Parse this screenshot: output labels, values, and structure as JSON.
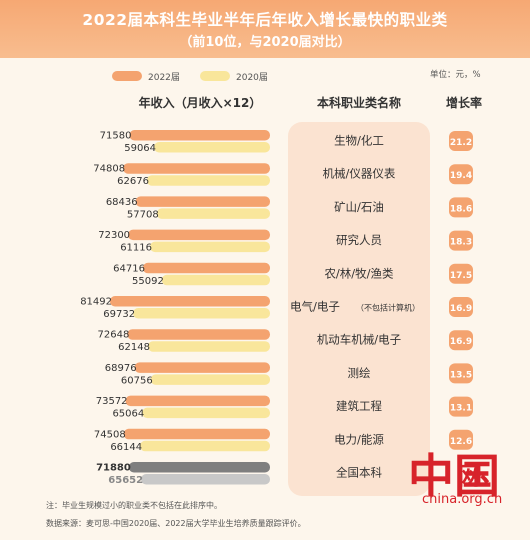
{
  "header": {
    "title": "2022届本科生毕业半年后年收入增长最快的职业类",
    "subtitle": "（前10位，与2020届对比）"
  },
  "legend": {
    "items": [
      {
        "label": "2022届",
        "color": "#f4a36f"
      },
      {
        "label": "2020届",
        "color": "#f9e69b"
      }
    ]
  },
  "unit": "单位：元，%",
  "columns": {
    "income": "年收入（月收入×12）",
    "category": "本科职业类名称",
    "growth": "增长率"
  },
  "chart_data": {
    "type": "bar",
    "categories": [
      "生物/化工",
      "机械/仪器仪表",
      "矿山/石油",
      "研究人员",
      "农/林/牧/渔类",
      "电气/电子",
      "机动车机械/电子",
      "测绘",
      "建筑工程",
      "电力/能源",
      "全国本科"
    ],
    "category_notes": [
      "",
      "",
      "",
      "",
      "",
      "（不包括计算机）",
      "",
      "",
      "",
      "",
      ""
    ],
    "series": [
      {
        "name": "2022届",
        "values": [
          71580,
          74808,
          68436,
          72300,
          64716,
          81492,
          72648,
          68976,
          73572,
          74508,
          71880
        ]
      },
      {
        "name": "2020届",
        "values": [
          59064,
          62676,
          57708,
          61116,
          55092,
          69732,
          62148,
          60756,
          65064,
          66144,
          65652
        ]
      }
    ],
    "growth": [
      "21.2",
      "19.4",
      "18.6",
      "18.3",
      "17.5",
      "16.9",
      "16.9",
      "13.5",
      "13.1",
      "12.6",
      ""
    ],
    "orientation": "horizontal, bars grow leftward",
    "colors": {
      "2022": "#f4a36f",
      "2020": "#f9e69b",
      "total_2022": "#7f7f7f",
      "total_2020": "#c8c8c8",
      "badge": "#f4a36f"
    },
    "xlim": [
      0,
      85000
    ],
    "grid": false,
    "legend_position": "top-left"
  },
  "watermark": {
    "domain": "china.org.cn"
  },
  "footnotes": {
    "note": "注：毕业生规模过小的职业类不包括在此排序中。",
    "source": "数据来源：麦可思-中国2020届、2022届大学毕业生培养质量跟踪评价。"
  }
}
